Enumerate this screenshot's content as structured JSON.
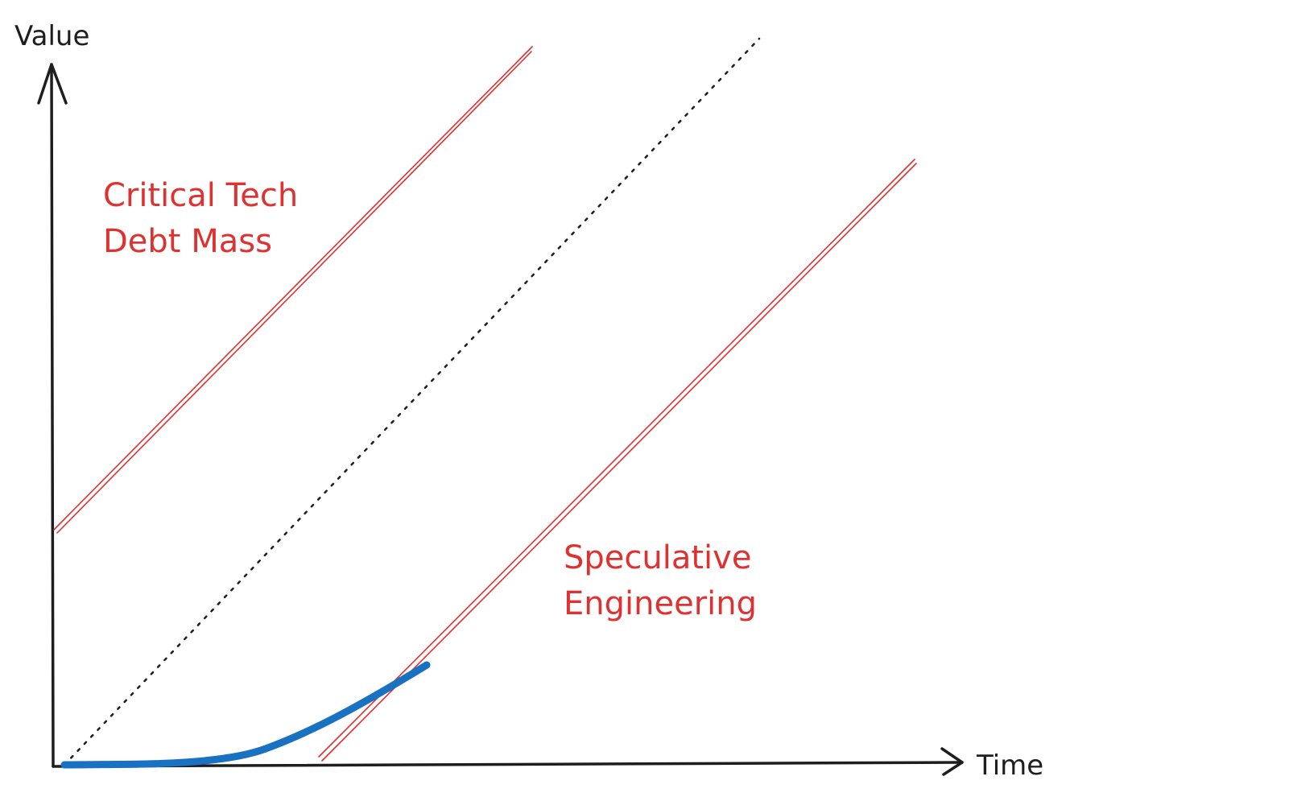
{
  "axes": {
    "y_label": "Value",
    "x_label": "Time"
  },
  "regions": {
    "upper": {
      "line1": "Critical Tech",
      "line2": "Debt Mass"
    },
    "lower": {
      "line1": "Speculative",
      "line2": "Engineering"
    }
  },
  "colors": {
    "axis": "#1e1e1e",
    "boundary": "#e03131",
    "curve": "#1971c2",
    "reference": "#1e1e1e"
  }
}
